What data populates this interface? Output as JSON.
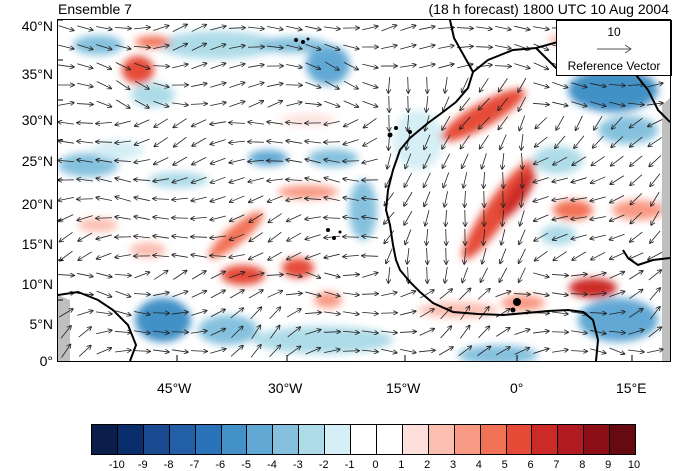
{
  "header": {
    "left_title": "Ensemble 7",
    "right_title": "(18 h forecast) 1800 UTC 10 Aug 2004"
  },
  "map": {
    "lon_range": [
      -60,
      20
    ],
    "lat_range": [
      0,
      40
    ],
    "y_axis_labels": [
      "40°N",
      "35°N",
      "30°N",
      "25°N",
      "20°N",
      "15°N",
      "10°N",
      "5°N",
      "0°"
    ],
    "x_axis_labels": [
      "45°W",
      "30°W",
      "15°W",
      "0°",
      "15°E"
    ],
    "reference_vector": {
      "value": "10",
      "label": "Reference Vector"
    },
    "coast_color": "#000000"
  },
  "colorbar": {
    "labels": [
      "-10",
      "-9",
      "-8",
      "-7",
      "-6",
      "-5",
      "-4",
      "-3",
      "-2",
      "-1",
      "0",
      "1",
      "2",
      "3",
      "4",
      "5",
      "6",
      "7",
      "8",
      "9",
      "10"
    ],
    "colors": [
      "#0b1d4a",
      "#0a2d6c",
      "#1a4a8f",
      "#235fa6",
      "#2b73b8",
      "#4391c6",
      "#62a8d4",
      "#85c1de",
      "#aedbe8",
      "#d6eef5",
      "#ffffff",
      "#ffffff",
      "#fde0dc",
      "#fbbfb2",
      "#f89a84",
      "#f27256",
      "#e54b37",
      "#cc2a26",
      "#b01a20",
      "#8c0f18",
      "#650a10"
    ]
  }
}
